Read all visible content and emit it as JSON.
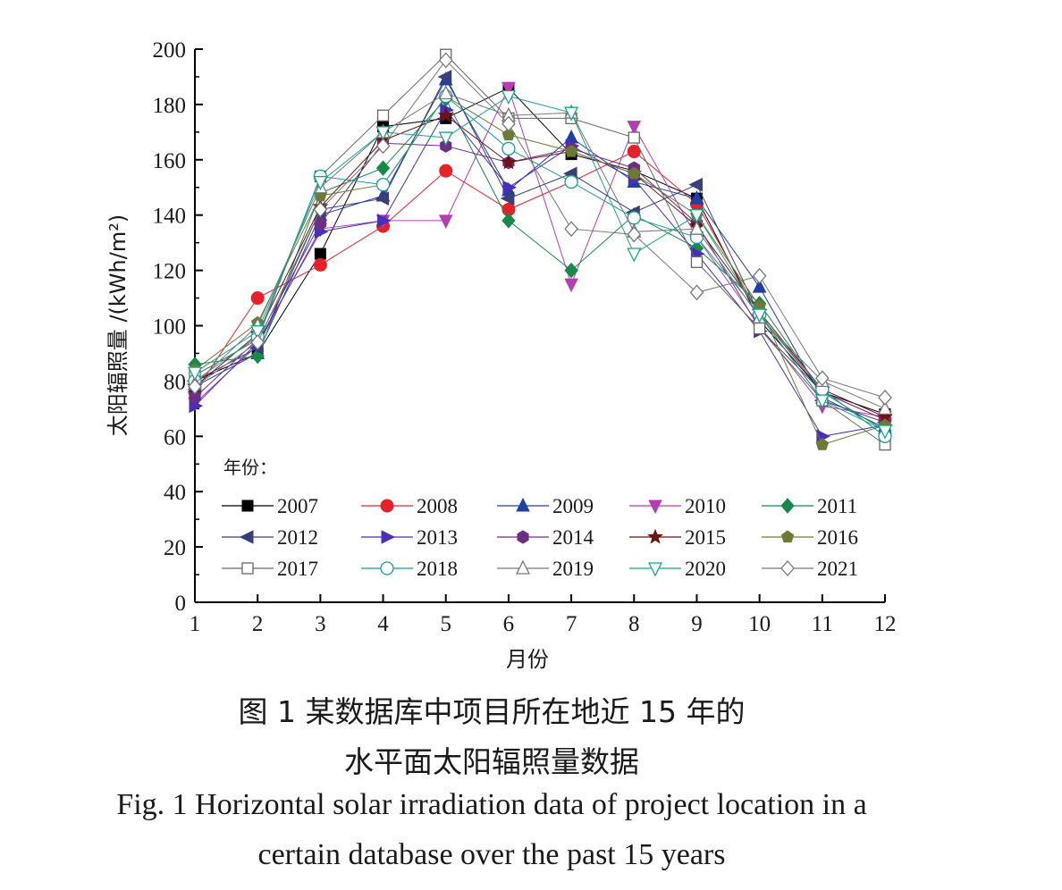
{
  "chart_data": {
    "type": "line",
    "ylabel": "太阳辐照量 /(kWh/m²)",
    "xlabel": "月份",
    "x": [
      1,
      2,
      3,
      4,
      5,
      6,
      7,
      8,
      9,
      10,
      11,
      12
    ],
    "xlim": [
      1,
      12
    ],
    "ylim": [
      0,
      200
    ],
    "yticks": [
      0,
      20,
      40,
      60,
      80,
      100,
      120,
      140,
      160,
      180,
      200
    ],
    "legend_title": "年份：",
    "legend_position": "bottom-left-inside",
    "grid": false,
    "series": [
      {
        "name": "2007",
        "color": "#000000",
        "marker": "square",
        "filled": true,
        "values": [
          80,
          90,
          126,
          172,
          175,
          186,
          162,
          156,
          146,
          102,
          76,
          68
        ]
      },
      {
        "name": "2008",
        "color": "#e8202a",
        "marker": "circle",
        "filled": true,
        "values": [
          76,
          110,
          122,
          136,
          156,
          142,
          152,
          163,
          144,
          104,
          76,
          66
        ]
      },
      {
        "name": "2009",
        "color": "#1f3fa6",
        "marker": "triangle-up",
        "filled": true,
        "values": [
          78,
          90,
          140,
          147,
          189,
          149,
          168,
          152,
          146,
          114,
          74,
          63
        ]
      },
      {
        "name": "2010",
        "color": "#b23fb0",
        "marker": "triangle-down",
        "filled": true,
        "values": [
          72,
          93,
          135,
          138,
          138,
          186,
          115,
          172,
          132,
          100,
          71,
          67
        ]
      },
      {
        "name": "2011",
        "color": "#178a4a",
        "marker": "diamond",
        "filled": true,
        "values": [
          86,
          89,
          148,
          157,
          182,
          138,
          120,
          140,
          128,
          108,
          76,
          62
        ]
      },
      {
        "name": "2012",
        "color": "#3a3f78",
        "marker": "triangle-left",
        "filled": true,
        "values": [
          80,
          92,
          142,
          146,
          190,
          146,
          155,
          141,
          151,
          104,
          73,
          65
        ]
      },
      {
        "name": "2013",
        "color": "#4b2fb8",
        "marker": "triangle-right",
        "filled": true,
        "values": [
          71,
          94,
          134,
          138,
          178,
          150,
          165,
          153,
          126,
          98,
          60,
          64
        ]
      },
      {
        "name": "2014",
        "color": "#6b2f86",
        "marker": "hexagon",
        "filled": true,
        "values": [
          74,
          95,
          137,
          166,
          165,
          159,
          164,
          157,
          137,
          99,
          76,
          66
        ]
      },
      {
        "name": "2015",
        "color": "#6e1212",
        "marker": "star",
        "filled": true,
        "values": [
          78,
          97,
          143,
          167,
          176,
          159,
          163,
          155,
          136,
          105,
          77,
          67
        ]
      },
      {
        "name": "2016",
        "color": "#6d7a36",
        "marker": "pentagon",
        "filled": true,
        "values": [
          84,
          101,
          147,
          151,
          183,
          169,
          163,
          155,
          140,
          107,
          57,
          64
        ]
      },
      {
        "name": "2017",
        "color": "#666666",
        "marker": "square",
        "filled": false,
        "values": [
          82,
          95,
          154,
          176,
          198,
          175,
          175,
          168,
          123,
          99,
          73,
          57
        ]
      },
      {
        "name": "2018",
        "color": "#1b9a9a",
        "marker": "circle",
        "filled": false,
        "values": [
          80,
          96,
          154,
          151,
          183,
          164,
          152,
          139,
          132,
          104,
          77,
          60
        ]
      },
      {
        "name": "2019",
        "color": "#777777",
        "marker": "triangle-up",
        "filled": false,
        "values": [
          79,
          100,
          150,
          170,
          184,
          176,
          177,
          134,
          135,
          103,
          80,
          70
        ]
      },
      {
        "name": "2020",
        "color": "#1aa58a",
        "marker": "triangle-down",
        "filled": false,
        "values": [
          83,
          98,
          152,
          170,
          168,
          183,
          177,
          126,
          140,
          104,
          73,
          62
        ]
      },
      {
        "name": "2021",
        "color": "#777777",
        "marker": "diamond",
        "filled": false,
        "values": [
          78,
          94,
          142,
          165,
          196,
          173,
          135,
          133,
          112,
          118,
          81,
          74
        ]
      }
    ]
  },
  "caption": {
    "zh_line1": "图 1  某数据库中项目所在地近 15 年的",
    "zh_line2": "水平面太阳辐照量数据",
    "en_line1": "Fig. 1  Horizontal solar irradiation data of project location in a",
    "en_line2": "certain database over the past 15 years"
  }
}
